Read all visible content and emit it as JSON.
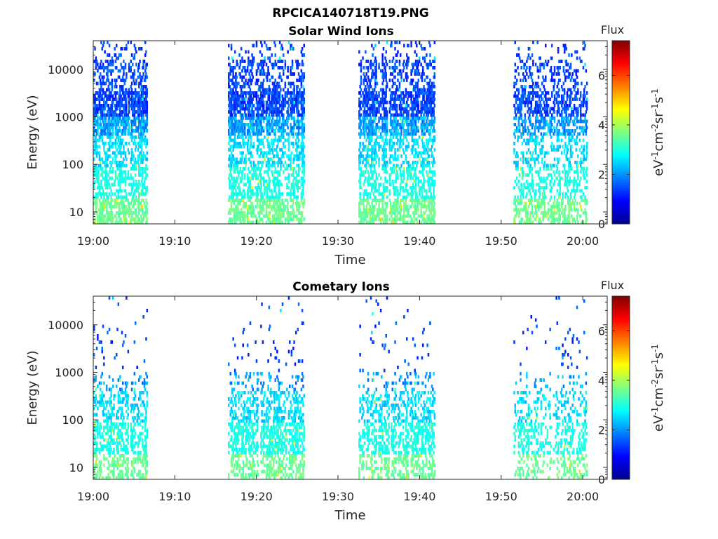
{
  "figure_title": "RPCICA140718T19.PNG",
  "chart_data": [
    {
      "type": "heatmap",
      "title": "Solar Wind Ions",
      "xlabel": "Time",
      "ylabel": "Energy (eV)",
      "x_ticks": [
        "19:00",
        "19:10",
        "19:20",
        "19:30",
        "19:40",
        "19:50",
        "20:00"
      ],
      "y_ticks": [
        "10",
        "100",
        "1000",
        "10000"
      ],
      "y_scale": "log",
      "x_range_minutes": [
        0,
        63
      ],
      "y_range_ev": [
        5.6,
        40000
      ],
      "bursts_minutes": [
        [
          0,
          6.5
        ],
        [
          16.5,
          25.8
        ],
        [
          32.5,
          41.8
        ],
        [
          51.5,
          60.5
        ]
      ],
      "colorbar": {
        "label": "Flux",
        "units": "eV-1cm-2sr-1s-1",
        "ticks": [
          "0",
          "2",
          "4",
          "6"
        ],
        "range": [
          0,
          7.4
        ]
      },
      "grid": false
    },
    {
      "type": "heatmap",
      "title": "Cometary Ions",
      "xlabel": "Time",
      "ylabel": "Energy (eV)",
      "x_ticks": [
        "19:00",
        "19:10",
        "19:20",
        "19:30",
        "19:40",
        "19:50",
        "20:00"
      ],
      "y_ticks": [
        "10",
        "100",
        "1000",
        "10000"
      ],
      "y_scale": "log",
      "x_range_minutes": [
        0,
        63
      ],
      "y_range_ev": [
        5.6,
        40000
      ],
      "bursts_minutes": [
        [
          0,
          6.5
        ],
        [
          16.5,
          25.8
        ],
        [
          32.5,
          41.8
        ],
        [
          51.5,
          60.5
        ]
      ],
      "colorbar": {
        "label": "Flux",
        "units": "eV-1cm-2sr-1s-1",
        "ticks": [
          "0",
          "2",
          "4",
          "6"
        ],
        "range": [
          0,
          7.4
        ]
      },
      "grid": false
    }
  ]
}
